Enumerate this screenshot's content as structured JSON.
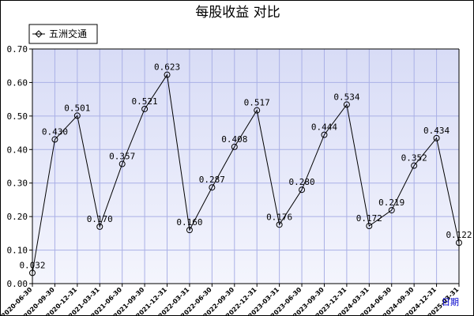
{
  "chart_data": {
    "type": "line",
    "title": "每股收益  对比",
    "xlabel": "",
    "ylabel": "",
    "x_axis_hint": "日期",
    "ylim": [
      0,
      0.7
    ],
    "y_ticks": [
      "0.00",
      "0.10",
      "0.20",
      "0.30",
      "0.40",
      "0.50",
      "0.60",
      "0.70"
    ],
    "grid": true,
    "legend_position": "top-left",
    "categories": [
      "2020-06-30",
      "2020-09-30",
      "2020-12-31",
      "2021-03-31",
      "2021-06-30",
      "2021-09-30",
      "2021-12-31",
      "2022-03-31",
      "2022-06-30",
      "2022-09-30",
      "2022-12-31",
      "2023-03-31",
      "2023-06-30",
      "2023-09-30",
      "2023-12-31",
      "2024-03-31",
      "2024-06-30",
      "2024-09-30",
      "2024-12-31",
      "2025-03-31"
    ],
    "series": [
      {
        "name": "五洲交通",
        "values": [
          0.032,
          0.43,
          0.501,
          0.17,
          0.357,
          0.521,
          0.623,
          0.16,
          0.287,
          0.408,
          0.517,
          0.176,
          0.28,
          0.444,
          0.534,
          0.172,
          0.219,
          0.352,
          0.434,
          0.122
        ],
        "labels": [
          "0.032",
          "0.430",
          "0.501",
          "0.170",
          "0.357",
          "0.521",
          "0.623",
          "0.160",
          "0.287",
          "0.408",
          "0.517",
          "0.176",
          "0.280",
          "0.444",
          "0.534",
          "0.172",
          "0.219",
          "0.352",
          "0.434",
          "0.122"
        ]
      }
    ],
    "colors": {
      "plot_bg_top": "#d8dcf6",
      "plot_bg_bottom": "#f4f5fd",
      "grid": "#aab0e6",
      "line": "#000000",
      "marker": "#000000"
    }
  }
}
